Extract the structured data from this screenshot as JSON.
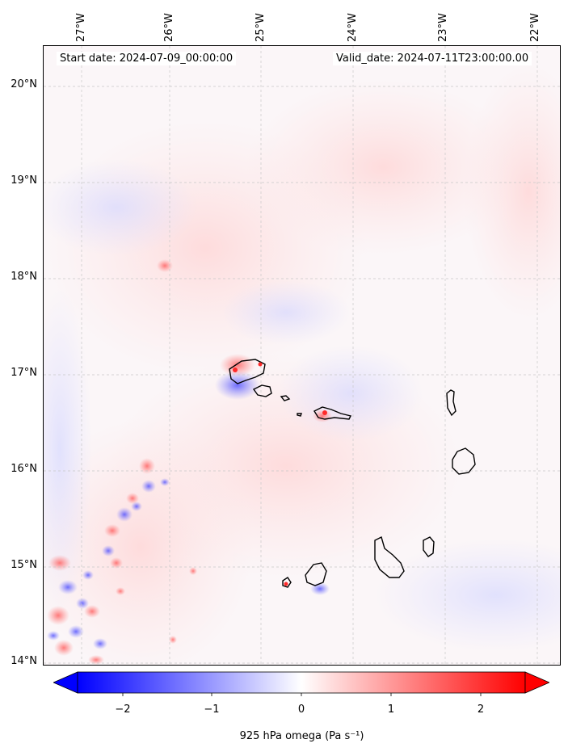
{
  "map": {
    "start_date": "Start date: 2024-07-09_00:00:00",
    "valid_date": "Valid_date: 2024-07-11T23:00:00.00",
    "lat_labels": [
      "20°N",
      "19°N",
      "18°N",
      "17°N",
      "16°N",
      "15°N",
      "14°N"
    ],
    "lon_labels": [
      "27°W",
      "26°W",
      "25°W",
      "24°W",
      "23°W",
      "22°W"
    ],
    "gridlines": true,
    "projection_extent": {
      "lon_min": -27.4,
      "lon_max": -21.8,
      "lat_min": 13.95,
      "lat_max": 20.4
    }
  },
  "colorbar": {
    "label": "925 hPa omega (Pa s⁻¹)",
    "ticks": [
      "−2",
      "−1",
      "0",
      "1",
      "2"
    ],
    "range": [
      -2.5,
      2.5
    ],
    "extend": "both",
    "colormap": "bwr",
    "colors": {
      "negative": "#0000ff",
      "zero": "#ffffff",
      "positive": "#ff0000"
    }
  }
}
